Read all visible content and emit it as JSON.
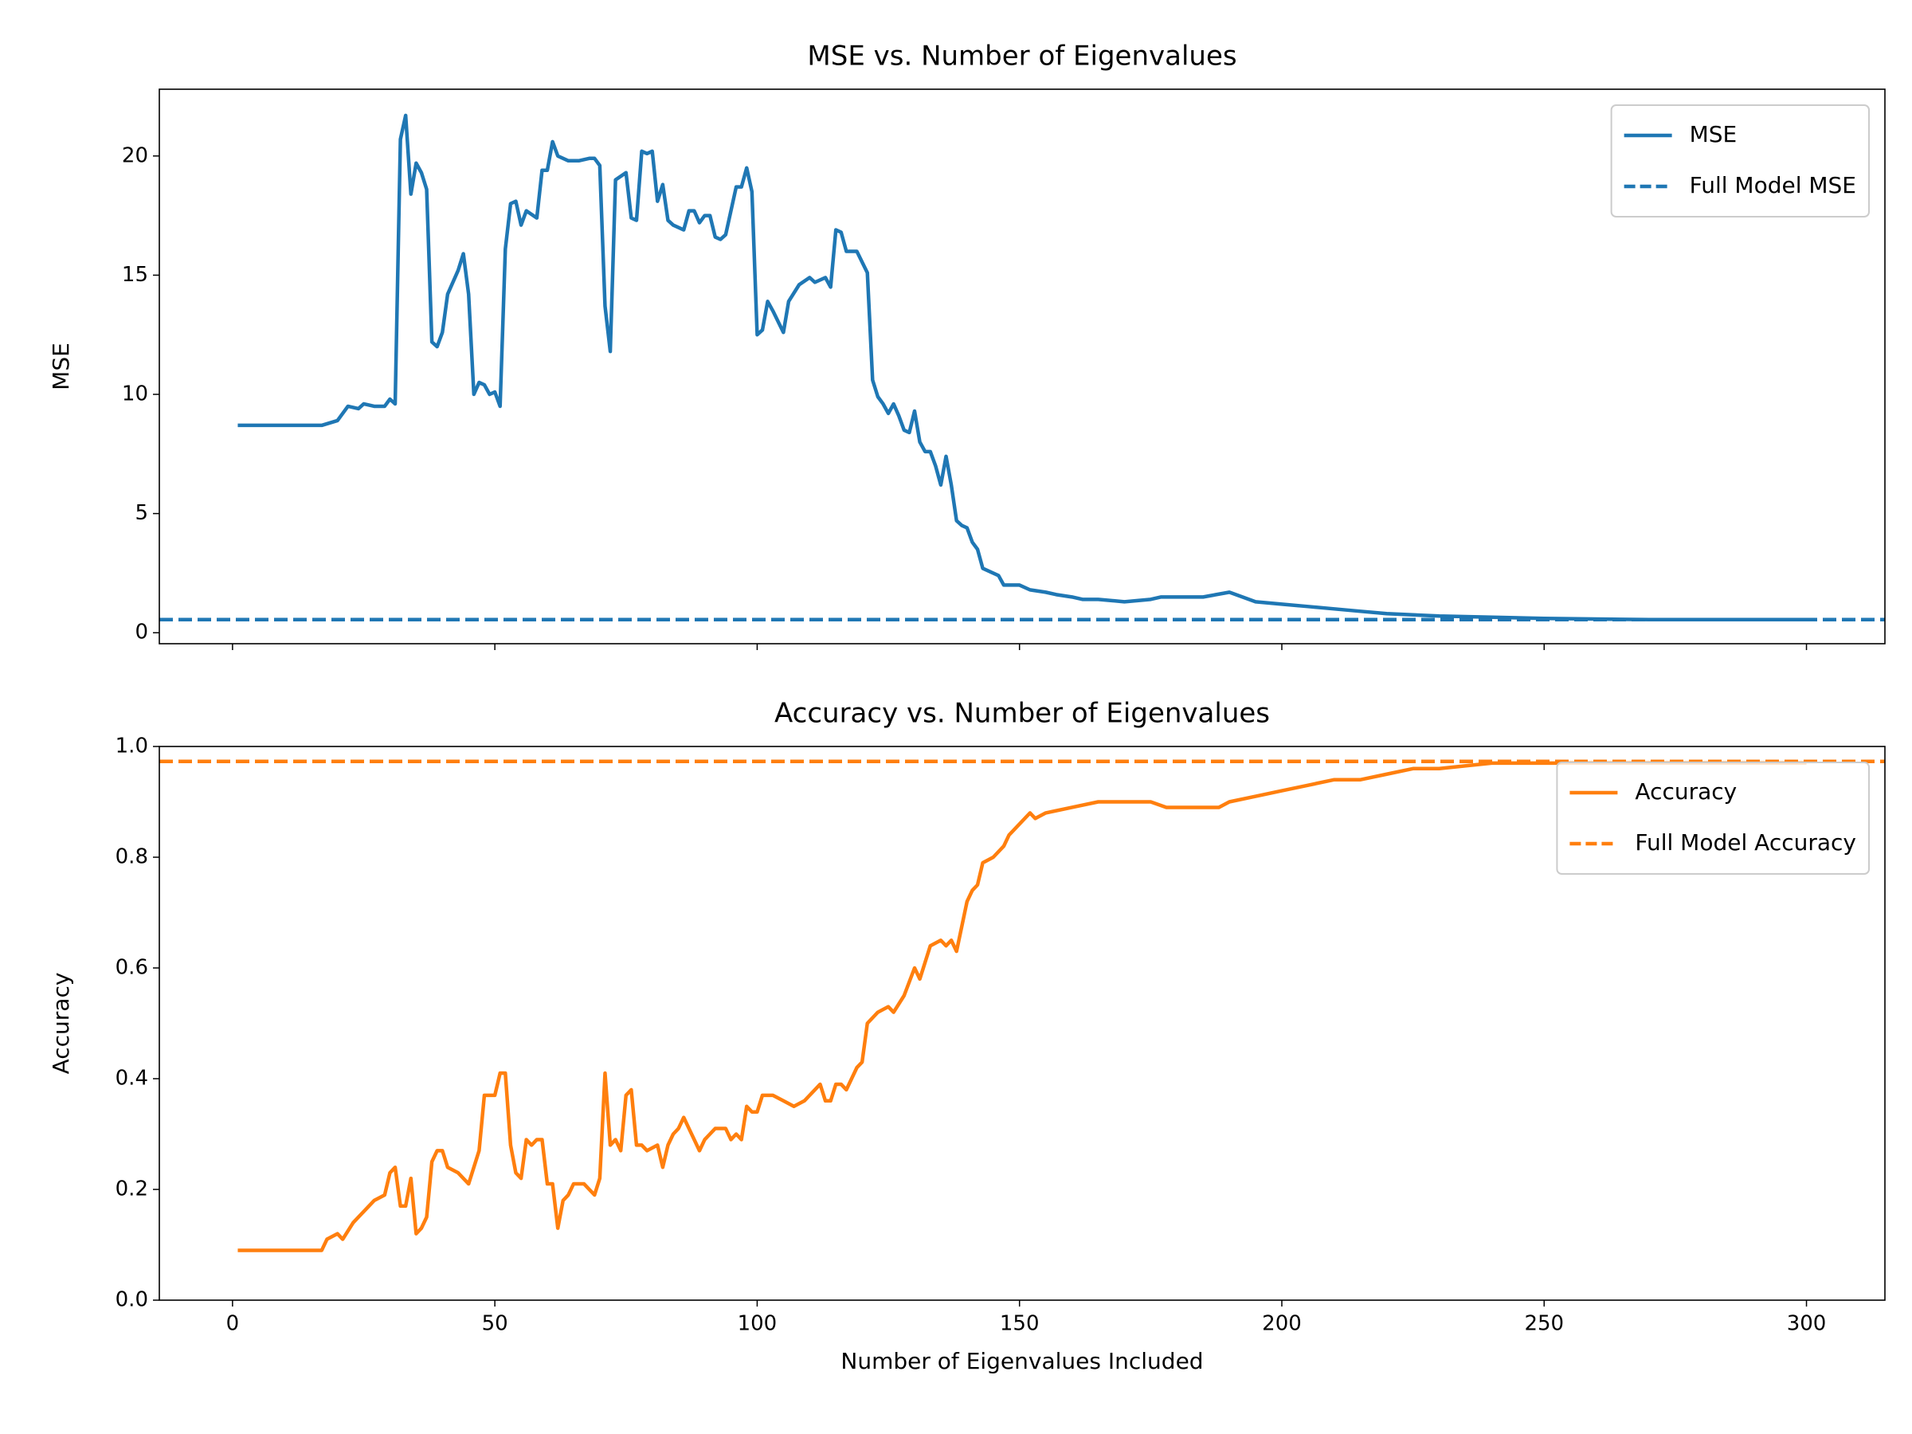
{
  "chart_data": [
    {
      "type": "line",
      "title": "MSE vs. Number of Eigenvalues",
      "ylabel": "MSE",
      "x": [
        1,
        17,
        20,
        22,
        24,
        25,
        27,
        29,
        30,
        31,
        32,
        33,
        34,
        35,
        36,
        37,
        38,
        39,
        40,
        41,
        43,
        44,
        45,
        46,
        47,
        48,
        49,
        50,
        51,
        52,
        53,
        54,
        55,
        56,
        58,
        59,
        60,
        61,
        62,
        64,
        66,
        68,
        69,
        70,
        71,
        72,
        73,
        75,
        76,
        77,
        78,
        79,
        80,
        81,
        82,
        83,
        84,
        86,
        87,
        88,
        89,
        90,
        91,
        92,
        93,
        94,
        96,
        97,
        98,
        99,
        100,
        101,
        102,
        103,
        105,
        106,
        108,
        110,
        111,
        113,
        114,
        115,
        116,
        117,
        119,
        121,
        122,
        123,
        124,
        125,
        126,
        127,
        128,
        129,
        130,
        131,
        132,
        133,
        134,
        135,
        136,
        137,
        138,
        139,
        140,
        141,
        142,
        143,
        145,
        146,
        147,
        150,
        152,
        155,
        157,
        160,
        162,
        165,
        170,
        175,
        177,
        180,
        185,
        190,
        195,
        200,
        205,
        210,
        215,
        220,
        230,
        250,
        270,
        300
      ],
      "series": [
        {
          "name": "MSE",
          "color": "#1f77b4",
          "values": [
            8.7,
            8.7,
            8.9,
            9.5,
            9.4,
            9.6,
            9.5,
            9.5,
            9.8,
            9.6,
            20.7,
            21.7,
            18.4,
            19.7,
            19.3,
            18.6,
            12.2,
            12.0,
            12.6,
            14.2,
            15.2,
            15.9,
            14.2,
            10.0,
            10.5,
            10.4,
            10.0,
            10.1,
            9.5,
            16.1,
            18.0,
            18.1,
            17.1,
            17.7,
            17.4,
            19.4,
            19.4,
            20.6,
            20.0,
            19.8,
            19.8,
            19.9,
            19.9,
            19.6,
            13.7,
            11.8,
            19.0,
            19.3,
            17.4,
            17.3,
            20.2,
            20.1,
            20.2,
            18.1,
            18.8,
            17.3,
            17.1,
            16.9,
            17.7,
            17.7,
            17.2,
            17.5,
            17.5,
            16.6,
            16.5,
            16.7,
            18.7,
            18.7,
            19.5,
            18.5,
            12.5,
            12.7,
            13.9,
            13.5,
            12.6,
            13.9,
            14.6,
            14.9,
            14.7,
            14.9,
            14.5,
            16.9,
            16.8,
            16.0,
            16.0,
            15.1,
            10.6,
            9.9,
            9.6,
            9.2,
            9.6,
            9.1,
            8.5,
            8.4,
            9.3,
            8.0,
            7.6,
            7.6,
            7.0,
            6.2,
            7.4,
            6.2,
            4.7,
            4.5,
            4.4,
            3.8,
            3.5,
            2.7,
            2.5,
            2.4,
            2.0,
            2.0,
            1.8,
            1.7,
            1.6,
            1.5,
            1.4,
            1.4,
            1.3,
            1.4,
            1.5,
            1.5,
            1.5,
            1.7,
            1.3,
            1.2,
            1.1,
            1.0,
            0.9,
            0.8,
            0.7,
            0.6,
            0.55,
            0.55
          ]
        }
      ],
      "hlines": [
        {
          "name": "Full Model MSE",
          "color": "#1f77b4",
          "value": 0.55
        }
      ],
      "xlim": [
        -13.95,
        314.95
      ],
      "ylim": [
        -0.46,
        22.8
      ],
      "xticks": [
        0,
        50,
        100,
        150,
        200,
        250,
        300
      ],
      "yticks": [
        0,
        5,
        10,
        15,
        20
      ],
      "legend": "upper right"
    },
    {
      "type": "line",
      "title": "Accuracy vs. Number of Eigenvalues",
      "xlabel": "Number of Eigenvalues Included",
      "ylabel": "Accuracy",
      "x": [
        1,
        17,
        18,
        20,
        21,
        23,
        25,
        27,
        29,
        30,
        31,
        32,
        33,
        34,
        35,
        36,
        37,
        38,
        39,
        40,
        41,
        43,
        45,
        47,
        48,
        50,
        51,
        52,
        53,
        54,
        55,
        56,
        57,
        58,
        59,
        60,
        61,
        62,
        63,
        64,
        65,
        67,
        69,
        70,
        71,
        72,
        73,
        74,
        75,
        76,
        77,
        78,
        79,
        81,
        82,
        83,
        84,
        85,
        86,
        87,
        89,
        90,
        92,
        94,
        95,
        96,
        97,
        98,
        99,
        100,
        101,
        103,
        105,
        107,
        109,
        111,
        112,
        113,
        114,
        115,
        116,
        117,
        119,
        120,
        121,
        123,
        125,
        126,
        128,
        130,
        131,
        132,
        133,
        135,
        136,
        137,
        138,
        140,
        141,
        142,
        143,
        145,
        147,
        148,
        150,
        152,
        153,
        155,
        160,
        165,
        170,
        175,
        178,
        182,
        185,
        188,
        190,
        195,
        200,
        205,
        210,
        215,
        220,
        225,
        230,
        240,
        260,
        280,
        300
      ],
      "series": [
        {
          "name": "Accuracy",
          "color": "#ff7f0e",
          "values": [
            0.09,
            0.09,
            0.11,
            0.12,
            0.11,
            0.14,
            0.16,
            0.18,
            0.19,
            0.23,
            0.24,
            0.17,
            0.17,
            0.22,
            0.12,
            0.13,
            0.15,
            0.25,
            0.27,
            0.27,
            0.24,
            0.23,
            0.21,
            0.27,
            0.37,
            0.37,
            0.41,
            0.41,
            0.28,
            0.23,
            0.22,
            0.29,
            0.28,
            0.29,
            0.29,
            0.21,
            0.21,
            0.13,
            0.18,
            0.19,
            0.21,
            0.21,
            0.19,
            0.22,
            0.41,
            0.28,
            0.29,
            0.27,
            0.37,
            0.38,
            0.28,
            0.28,
            0.27,
            0.28,
            0.24,
            0.28,
            0.3,
            0.31,
            0.33,
            0.31,
            0.27,
            0.29,
            0.31,
            0.31,
            0.29,
            0.3,
            0.29,
            0.35,
            0.34,
            0.34,
            0.37,
            0.37,
            0.36,
            0.35,
            0.36,
            0.38,
            0.39,
            0.36,
            0.36,
            0.39,
            0.39,
            0.38,
            0.42,
            0.43,
            0.5,
            0.52,
            0.53,
            0.52,
            0.55,
            0.6,
            0.58,
            0.61,
            0.64,
            0.65,
            0.64,
            0.65,
            0.63,
            0.72,
            0.74,
            0.75,
            0.79,
            0.8,
            0.82,
            0.84,
            0.86,
            0.88,
            0.87,
            0.88,
            0.89,
            0.9,
            0.9,
            0.9,
            0.89,
            0.89,
            0.89,
            0.89,
            0.9,
            0.91,
            0.92,
            0.93,
            0.94,
            0.94,
            0.95,
            0.96,
            0.96,
            0.97,
            0.97,
            0.97,
            0.97
          ]
        }
      ],
      "hlines": [
        {
          "name": "Full Model Accuracy",
          "color": "#ff7f0e",
          "value": 0.973
        }
      ],
      "xlim": [
        -13.95,
        314.95
      ],
      "ylim": [
        0,
        1
      ],
      "xticks": [
        0,
        50,
        100,
        150,
        200,
        250,
        300
      ],
      "yticks": [
        {
          "value": 0,
          "label": "0.0"
        },
        {
          "value": 0.2,
          "label": "0.2"
        },
        {
          "value": 0.4,
          "label": "0.4"
        },
        {
          "value": 0.6,
          "label": "0.6"
        },
        {
          "value": 0.8,
          "label": "0.8"
        },
        {
          "value": 1,
          "label": "1.0"
        }
      ],
      "legend": "upper right"
    }
  ]
}
